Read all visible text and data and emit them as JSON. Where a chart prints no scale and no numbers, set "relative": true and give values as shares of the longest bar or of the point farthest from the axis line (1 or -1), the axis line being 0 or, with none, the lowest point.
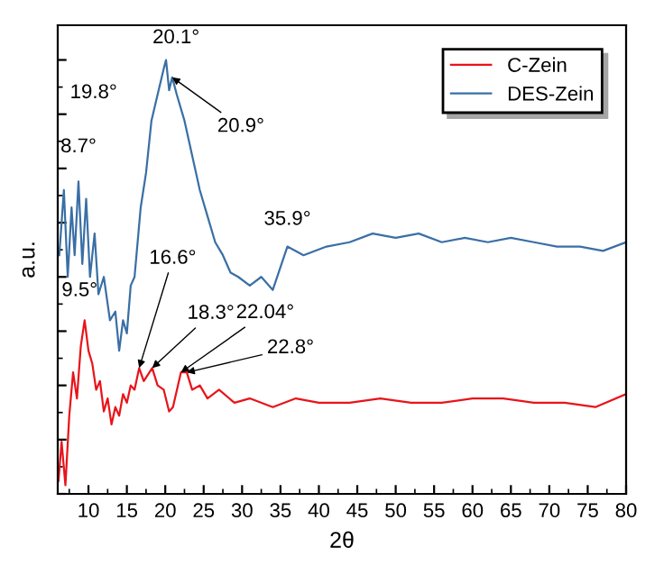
{
  "chart_data": {
    "type": "line",
    "xlabel": "2θ",
    "ylabel": "a.u.",
    "relative": true,
    "tick_labels": "x",
    "xlim": [
      6,
      80
    ],
    "xticks": [
      10,
      15,
      20,
      25,
      30,
      35,
      40,
      45,
      50,
      55,
      60,
      65,
      70,
      75,
      80
    ],
    "legend": "top right",
    "grid": false,
    "marker": "none",
    "line_style": "solid",
    "series": [
      {
        "name": "C-Zein",
        "color": "#e8141a",
        "x": [
          6.1,
          6.5,
          7,
          7.5,
          8,
          8.5,
          9,
          9.5,
          10,
          10.5,
          11,
          11.5,
          12,
          12.5,
          13,
          13.5,
          14,
          14.5,
          15,
          15.5,
          16,
          16.6,
          17.2,
          18.3,
          19,
          19.8,
          20.5,
          21,
          22.04,
          22.8,
          23.5,
          24.5,
          25.5,
          27,
          29,
          31,
          34,
          37,
          40,
          44,
          48,
          52,
          56,
          60,
          64,
          68,
          72,
          76,
          80
        ],
        "values": [
          0.03,
          0.12,
          0.02,
          0.18,
          0.28,
          0.22,
          0.34,
          0.4,
          0.33,
          0.3,
          0.24,
          0.26,
          0.19,
          0.22,
          0.16,
          0.2,
          0.18,
          0.23,
          0.21,
          0.25,
          0.24,
          0.29,
          0.26,
          0.29,
          0.25,
          0.24,
          0.19,
          0.2,
          0.28,
          0.28,
          0.24,
          0.25,
          0.22,
          0.24,
          0.21,
          0.22,
          0.2,
          0.22,
          0.21,
          0.21,
          0.22,
          0.21,
          0.21,
          0.22,
          0.22,
          0.21,
          0.21,
          0.2,
          0.23
        ]
      },
      {
        "name": "DES-Zein",
        "color": "#3a6fa5",
        "x": [
          6.2,
          6.8,
          7.3,
          7.8,
          8.2,
          8.7,
          9.2,
          9.7,
          10.2,
          10.8,
          11.3,
          12,
          12.8,
          13.5,
          14,
          14.5,
          15,
          15.5,
          16,
          16.8,
          17.5,
          18.2,
          19,
          19.8,
          20.1,
          20.5,
          20.9,
          21.5,
          22.5,
          23.5,
          24.5,
          25.5,
          26.5,
          27.5,
          28.5,
          29.5,
          31,
          32.5,
          34,
          35.9,
          38,
          41,
          44,
          47,
          50,
          53,
          56,
          59,
          62,
          65,
          68,
          71,
          74,
          77,
          80
        ],
        "values": [
          0.55,
          0.7,
          0.5,
          0.66,
          0.55,
          0.72,
          0.53,
          0.68,
          0.5,
          0.6,
          0.46,
          0.5,
          0.4,
          0.42,
          0.33,
          0.4,
          0.37,
          0.48,
          0.5,
          0.66,
          0.74,
          0.86,
          0.92,
          0.98,
          1.0,
          0.93,
          0.96,
          0.92,
          0.86,
          0.78,
          0.7,
          0.64,
          0.58,
          0.55,
          0.51,
          0.5,
          0.48,
          0.5,
          0.47,
          0.57,
          0.55,
          0.57,
          0.58,
          0.6,
          0.59,
          0.6,
          0.58,
          0.59,
          0.58,
          0.59,
          0.58,
          0.57,
          0.57,
          0.56,
          0.58
        ]
      }
    ],
    "annotations": [
      {
        "text": "8.7°",
        "x": 8.7,
        "y": 0.72
      },
      {
        "text": "19.8°",
        "x": 19.8,
        "y": 0.98
      },
      {
        "text": "20.1°",
        "x": 20.1,
        "y": 1.0
      },
      {
        "text": "20.9°",
        "x": 20.9,
        "y": 0.96
      },
      {
        "text": "35.9°",
        "x": 35.9,
        "y": 0.57
      },
      {
        "text": "9.5°",
        "x": 9.5,
        "y": 0.4
      },
      {
        "text": "16.6°",
        "x": 16.6,
        "y": 0.29
      },
      {
        "text": "18.3°",
        "x": 18.3,
        "y": 0.29
      },
      {
        "text": "22.04°",
        "x": 22.04,
        "y": 0.28
      },
      {
        "text": "22.8°",
        "x": 22.8,
        "y": 0.28
      }
    ]
  }
}
